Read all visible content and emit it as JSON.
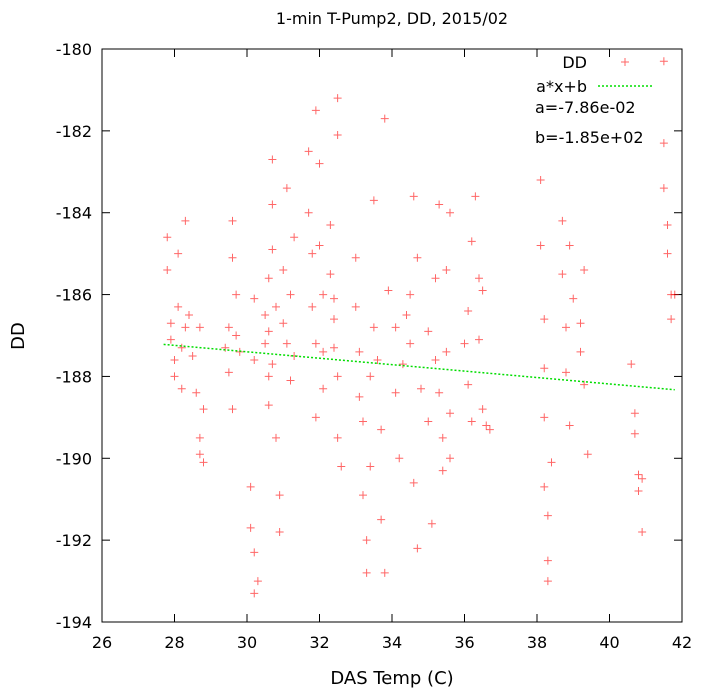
{
  "chart_data": {
    "type": "scatter",
    "title": "1-min T-Pump2, DD, 2015/02",
    "xlabel": "DAS Temp (C)",
    "ylabel": "DD",
    "xlim": [
      26,
      42
    ],
    "ylim": [
      -194,
      -180
    ],
    "xticks": [
      "26",
      "28",
      "30",
      "32",
      "34",
      "36",
      "38",
      "40",
      "42"
    ],
    "yticks": [
      "-180",
      "-182",
      "-184",
      "-186",
      "-188",
      "-190",
      "-192",
      "-194"
    ],
    "grid": false,
    "legend_position": "top-right",
    "series": [
      {
        "name": "DD",
        "kind": "points",
        "marker": "+",
        "color": "#ff0000",
        "points": [
          [
            27.8,
            -184.6
          ],
          [
            27.8,
            -185.4
          ],
          [
            27.9,
            -186.7
          ],
          [
            27.9,
            -187.1
          ],
          [
            28.0,
            -187.6
          ],
          [
            28.0,
            -188.0
          ],
          [
            28.1,
            -186.3
          ],
          [
            28.1,
            -185.0
          ],
          [
            28.2,
            -187.3
          ],
          [
            28.2,
            -188.3
          ],
          [
            28.3,
            -186.8
          ],
          [
            28.3,
            -184.2
          ],
          [
            28.4,
            -186.5
          ],
          [
            28.5,
            -187.5
          ],
          [
            28.6,
            -188.4
          ],
          [
            28.7,
            -189.5
          ],
          [
            28.7,
            -189.9
          ],
          [
            28.8,
            -190.1
          ],
          [
            28.8,
            -188.8
          ],
          [
            28.7,
            -186.8
          ],
          [
            29.4,
            -187.3
          ],
          [
            29.5,
            -186.8
          ],
          [
            29.5,
            -187.9
          ],
          [
            29.6,
            -184.2
          ],
          [
            29.6,
            -185.1
          ],
          [
            29.7,
            -187.0
          ],
          [
            29.7,
            -186.0
          ],
          [
            29.8,
            -187.4
          ],
          [
            29.6,
            -188.8
          ],
          [
            30.1,
            -190.7
          ],
          [
            30.1,
            -191.7
          ],
          [
            30.2,
            -192.3
          ],
          [
            30.2,
            -193.3
          ],
          [
            30.3,
            -193.0
          ],
          [
            30.2,
            -187.6
          ],
          [
            30.2,
            -186.1
          ],
          [
            30.5,
            -186.5
          ],
          [
            30.5,
            -187.2
          ],
          [
            30.6,
            -188.0
          ],
          [
            30.6,
            -188.7
          ],
          [
            30.7,
            -184.9
          ],
          [
            30.7,
            -183.8
          ],
          [
            30.7,
            -182.7
          ],
          [
            30.6,
            -185.6
          ],
          [
            30.8,
            -186.3
          ],
          [
            30.8,
            -189.5
          ],
          [
            30.9,
            -191.8
          ],
          [
            30.9,
            -190.9
          ],
          [
            30.6,
            -186.9
          ],
          [
            30.7,
            -187.7
          ],
          [
            31.0,
            -186.7
          ],
          [
            31.0,
            -185.4
          ],
          [
            31.1,
            -183.4
          ],
          [
            31.1,
            -187.2
          ],
          [
            31.2,
            -188.1
          ],
          [
            31.2,
            -186.0
          ],
          [
            31.3,
            -187.5
          ],
          [
            31.3,
            -184.6
          ],
          [
            31.7,
            -182.5
          ],
          [
            31.7,
            -184.0
          ],
          [
            31.8,
            -185.0
          ],
          [
            31.8,
            -186.3
          ],
          [
            31.9,
            -187.2
          ],
          [
            31.9,
            -181.5
          ],
          [
            32.0,
            -182.8
          ],
          [
            32.0,
            -184.8
          ],
          [
            32.1,
            -186.0
          ],
          [
            32.1,
            -187.4
          ],
          [
            32.1,
            -188.3
          ],
          [
            31.9,
            -189.0
          ],
          [
            32.3,
            -184.3
          ],
          [
            32.3,
            -185.5
          ],
          [
            32.4,
            -186.6
          ],
          [
            32.4,
            -187.3
          ],
          [
            32.5,
            -181.2
          ],
          [
            32.5,
            -182.1
          ],
          [
            32.5,
            -188.0
          ],
          [
            32.5,
            -189.5
          ],
          [
            32.6,
            -190.2
          ],
          [
            32.4,
            -186.1
          ],
          [
            33.0,
            -185.1
          ],
          [
            33.0,
            -186.3
          ],
          [
            33.1,
            -187.4
          ],
          [
            33.1,
            -188.5
          ],
          [
            33.2,
            -189.1
          ],
          [
            33.2,
            -190.9
          ],
          [
            33.3,
            -192.0
          ],
          [
            33.3,
            -192.8
          ],
          [
            33.4,
            -190.2
          ],
          [
            33.4,
            -188.0
          ],
          [
            33.5,
            -186.8
          ],
          [
            33.5,
            -183.7
          ],
          [
            33.6,
            -187.6
          ],
          [
            33.7,
            -189.3
          ],
          [
            33.7,
            -191.5
          ],
          [
            33.8,
            -192.8
          ],
          [
            33.8,
            -181.7
          ],
          [
            33.9,
            -185.9
          ],
          [
            34.1,
            -186.8
          ],
          [
            34.1,
            -188.4
          ],
          [
            34.2,
            -190.0
          ],
          [
            34.3,
            -187.7
          ],
          [
            34.4,
            -186.5
          ],
          [
            34.5,
            -186.0
          ],
          [
            34.5,
            -187.2
          ],
          [
            34.6,
            -183.6
          ],
          [
            34.6,
            -190.6
          ],
          [
            34.7,
            -192.2
          ],
          [
            34.8,
            -188.3
          ],
          [
            34.7,
            -185.1
          ],
          [
            35.0,
            -186.9
          ],
          [
            35.0,
            -189.1
          ],
          [
            35.1,
            -191.6
          ],
          [
            35.2,
            -187.6
          ],
          [
            35.2,
            -185.6
          ],
          [
            35.3,
            -183.8
          ],
          [
            35.3,
            -188.4
          ],
          [
            35.4,
            -189.5
          ],
          [
            35.4,
            -190.3
          ],
          [
            35.5,
            -187.4
          ],
          [
            35.5,
            -185.4
          ],
          [
            35.6,
            -188.9
          ],
          [
            35.6,
            -190.0
          ],
          [
            35.6,
            -184.0
          ],
          [
            36.0,
            -187.2
          ],
          [
            36.1,
            -186.4
          ],
          [
            36.1,
            -188.2
          ],
          [
            36.2,
            -184.7
          ],
          [
            36.2,
            -189.1
          ],
          [
            36.3,
            -183.6
          ],
          [
            36.4,
            -185.6
          ],
          [
            36.4,
            -187.1
          ],
          [
            36.5,
            -188.8
          ],
          [
            36.6,
            -189.2
          ],
          [
            36.7,
            -189.3
          ],
          [
            36.5,
            -185.9
          ],
          [
            38.1,
            -183.2
          ],
          [
            38.1,
            -184.8
          ],
          [
            38.2,
            -186.6
          ],
          [
            38.2,
            -187.8
          ],
          [
            38.2,
            -189.0
          ],
          [
            38.2,
            -190.7
          ],
          [
            38.3,
            -191.4
          ],
          [
            38.3,
            -192.5
          ],
          [
            38.3,
            -193.0
          ],
          [
            38.4,
            -190.1
          ],
          [
            38.7,
            -184.2
          ],
          [
            38.7,
            -185.5
          ],
          [
            38.8,
            -186.8
          ],
          [
            38.8,
            -187.9
          ],
          [
            38.9,
            -189.2
          ],
          [
            38.9,
            -184.8
          ],
          [
            39.0,
            -186.1
          ],
          [
            39.2,
            -186.7
          ],
          [
            39.2,
            -187.4
          ],
          [
            39.3,
            -188.2
          ],
          [
            39.3,
            -185.4
          ],
          [
            39.4,
            -189.9
          ],
          [
            40.6,
            -187.7
          ],
          [
            40.7,
            -188.9
          ],
          [
            40.7,
            -189.4
          ],
          [
            40.8,
            -190.4
          ],
          [
            40.8,
            -190.8
          ],
          [
            40.9,
            -191.8
          ],
          [
            40.9,
            -190.5
          ],
          [
            41.5,
            -180.3
          ],
          [
            41.5,
            -182.3
          ],
          [
            41.5,
            -183.4
          ],
          [
            41.6,
            -184.3
          ],
          [
            41.6,
            -185.0
          ],
          [
            41.7,
            -186.0
          ],
          [
            41.7,
            -186.6
          ],
          [
            41.8,
            -186.0
          ]
        ]
      },
      {
        "name": "a*x+b",
        "kind": "line",
        "style": "dotted",
        "color": "#00dd00",
        "slope": -0.0786,
        "intercept": -185.04,
        "x_range": [
          27.7,
          41.8
        ]
      }
    ],
    "annotations": [
      "a=-7.86e-02",
      "b=-1.85e+02"
    ]
  }
}
